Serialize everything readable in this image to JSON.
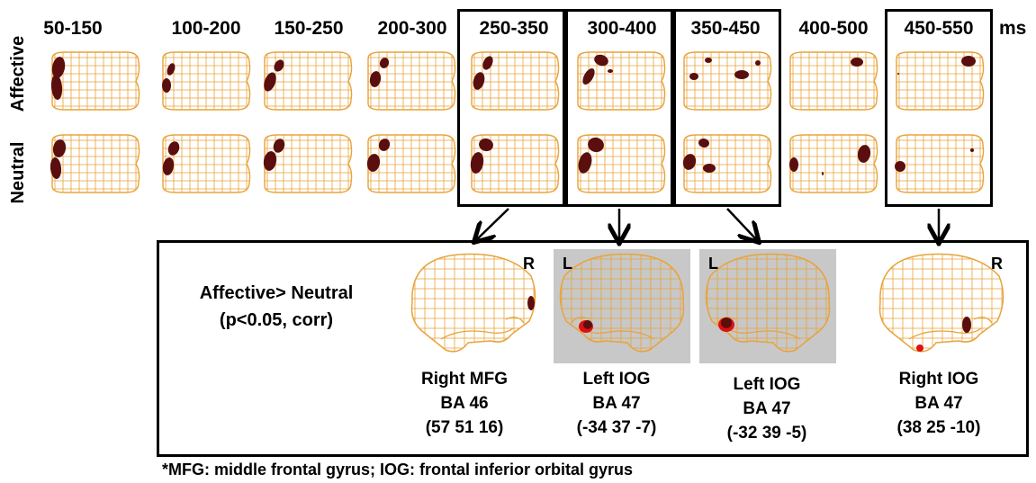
{
  "time_windows": [
    "50-150",
    "100-200",
    "150-250",
    "200-300",
    "250-350",
    "300-400",
    "350-450",
    "400-500",
    "450-550"
  ],
  "unit_label": "ms",
  "row_labels": {
    "affective": "Affective",
    "neutral": "Neutral"
  },
  "comparison": {
    "line1": "Affective> Neutral",
    "line2": "(p<0.05, corr)"
  },
  "panels": [
    {
      "side": "R",
      "region": "Right MFG",
      "ba": "BA 46",
      "coords": "(57 51 16)"
    },
    {
      "side": "L",
      "region": "Left IOG",
      "ba": "BA 47",
      "coords": "(-34 37 -7)"
    },
    {
      "side": "L",
      "region": "Left IOG",
      "ba": "BA 47",
      "coords": "(-32 39 -5)"
    },
    {
      "side": "R",
      "region": "Right IOG",
      "ba": "BA 47",
      "coords": "(38 25 -10)"
    }
  ],
  "footnote": "*MFG:  middle frontal gyrus; IOG:  frontal inferior orbital gyrus",
  "colors": {
    "grid": "#e8a33a",
    "blob": "#5a0e0e",
    "blob_red": "#e01010",
    "panel_gray": "#c8c8c8"
  }
}
